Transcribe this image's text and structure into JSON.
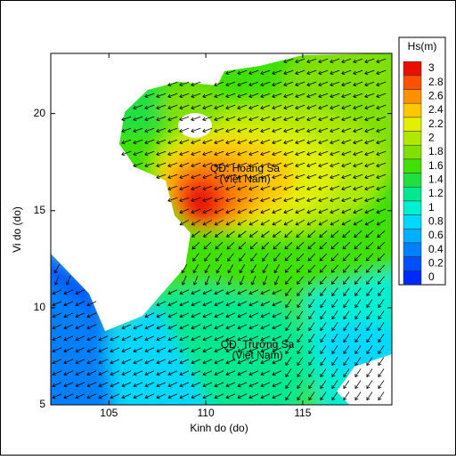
{
  "chart_data": {
    "type": "contour",
    "xlabel": "Kinh do (do)",
    "ylabel": "Vi do (do)",
    "xlim": [
      102,
      119.6
    ],
    "ylim": [
      5,
      23.1
    ],
    "xticks": [
      105,
      110,
      115
    ],
    "yticks": [
      5,
      10,
      15,
      20
    ],
    "annotations": [
      "QĐ. Hoàng Sa",
      "(Việt Nam)",
      "QĐ. Trường Sa",
      "(Việt Nam)"
    ],
    "colorbar": {
      "title": "Hs(m)",
      "ticks": [
        0,
        0.2,
        0.4,
        0.6,
        0.8,
        1,
        1.2,
        1.4,
        1.6,
        1.8,
        2,
        2.2,
        2.4,
        2.6,
        2.8,
        3
      ],
      "colors": [
        "#0028ff",
        "#0050ff",
        "#0080ff",
        "#00b0ff",
        "#00d8ff",
        "#00f0d0",
        "#00e890",
        "#20e040",
        "#40e000",
        "#80e000",
        "#b0e800",
        "#e0f000",
        "#ffc800",
        "#ff9000",
        "#ff5000",
        "#e81000"
      ]
    }
  }
}
